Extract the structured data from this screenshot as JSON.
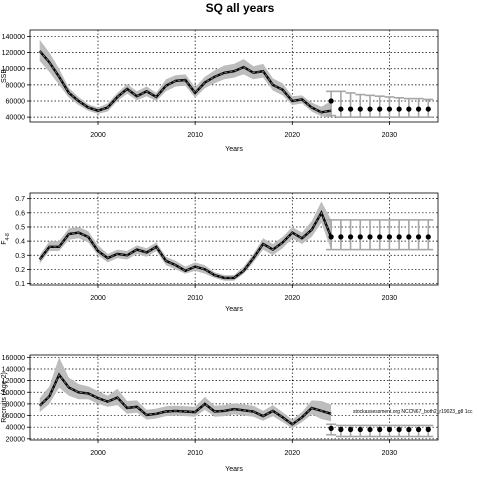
{
  "title": "SQ all years",
  "colors": {
    "band": "#bdbdbd",
    "line": "#000000",
    "grid": "#000000",
    "forecast_bar": "#a6a6a6"
  },
  "chart_data": [
    {
      "type": "line",
      "ylabel": "SSB",
      "xlabel": "Years",
      "xlim": [
        1993,
        2035
      ],
      "ylim": [
        34000,
        148000
      ],
      "xticks": [
        2000,
        2010,
        2020,
        2030
      ],
      "yticks": [
        40000,
        60000,
        80000,
        100000,
        120000,
        140000
      ],
      "grid": true,
      "historical": {
        "x": [
          1994,
          1995,
          1996,
          1997,
          1998,
          1999,
          2000,
          2001,
          2002,
          2003,
          2004,
          2005,
          2006,
          2007,
          2008,
          2009,
          2010,
          2011,
          2012,
          2013,
          2014,
          2015,
          2016,
          2017,
          2018,
          2019,
          2020,
          2021,
          2022,
          2023,
          2024
        ],
        "y": [
          122000,
          108000,
          90000,
          70000,
          60000,
          52000,
          48000,
          52000,
          65000,
          75000,
          66000,
          72000,
          65000,
          79000,
          85000,
          86000,
          70000,
          83000,
          90000,
          95000,
          97000,
          102000,
          95000,
          97000,
          80000,
          74000,
          60000,
          62000,
          52000,
          46000,
          48000
        ],
        "upper": [
          136000,
          120000,
          100000,
          76000,
          65000,
          56000,
          52000,
          57000,
          70000,
          81000,
          72000,
          78000,
          70000,
          87000,
          92000,
          93000,
          77000,
          90000,
          98000,
          104000,
          106000,
          112000,
          103000,
          106000,
          88000,
          82000,
          66000,
          67000,
          58000,
          53000,
          60000
        ],
        "lower": [
          110000,
          96000,
          80000,
          64000,
          55000,
          48000,
          44000,
          47000,
          60000,
          69000,
          61000,
          66000,
          60000,
          72000,
          78000,
          79000,
          64000,
          76000,
          82000,
          87000,
          89000,
          93000,
          87000,
          89000,
          73000,
          67000,
          55000,
          57000,
          47000,
          41000,
          40000
        ]
      },
      "forecast": {
        "x": [
          2024,
          2025,
          2026,
          2027,
          2028,
          2029,
          2030,
          2031,
          2032,
          2033,
          2034
        ],
        "y": [
          60000,
          50000,
          50000,
          50000,
          50000,
          50000,
          50000,
          50000,
          50000,
          50000,
          50000
        ],
        "upper": [
          72000,
          72000,
          70000,
          68000,
          67000,
          66000,
          65000,
          64000,
          63000,
          63000,
          62000
        ],
        "lower": [
          42000,
          40000,
          40000,
          40000,
          40000,
          40000,
          40000,
          40000,
          40000,
          40000,
          40000
        ]
      }
    },
    {
      "type": "line",
      "ylabel": "F",
      "ylabel_sub": "4-8",
      "xlabel": "Years",
      "xlim": [
        1993,
        2035
      ],
      "ylim": [
        0.09,
        0.74
      ],
      "xticks": [
        2000,
        2010,
        2020,
        2030
      ],
      "yticks": [
        0.1,
        0.2,
        0.3,
        0.4,
        0.5,
        0.6,
        0.7
      ],
      "ytick_labels": [
        "0.1",
        "0.2",
        "0.3",
        "0.4",
        "0.5",
        "0.6",
        "0.7"
      ],
      "grid": true,
      "historical": {
        "x": [
          1994,
          1995,
          1996,
          1997,
          1998,
          1999,
          2000,
          2001,
          2002,
          2003,
          2004,
          2005,
          2006,
          2007,
          2008,
          2009,
          2010,
          2011,
          2012,
          2013,
          2014,
          2015,
          2016,
          2017,
          2018,
          2019,
          2020,
          2021,
          2022,
          2023,
          2024
        ],
        "y": [
          0.27,
          0.36,
          0.36,
          0.45,
          0.46,
          0.43,
          0.33,
          0.28,
          0.31,
          0.3,
          0.34,
          0.32,
          0.36,
          0.26,
          0.23,
          0.19,
          0.22,
          0.2,
          0.16,
          0.14,
          0.14,
          0.19,
          0.28,
          0.38,
          0.34,
          0.39,
          0.46,
          0.42,
          0.48,
          0.6,
          0.43
        ],
        "upper": [
          0.3,
          0.4,
          0.4,
          0.49,
          0.5,
          0.47,
          0.37,
          0.31,
          0.34,
          0.33,
          0.37,
          0.35,
          0.39,
          0.29,
          0.26,
          0.22,
          0.25,
          0.23,
          0.18,
          0.16,
          0.16,
          0.22,
          0.31,
          0.42,
          0.38,
          0.43,
          0.5,
          0.46,
          0.54,
          0.68,
          0.55
        ],
        "lower": [
          0.24,
          0.33,
          0.33,
          0.41,
          0.42,
          0.39,
          0.3,
          0.25,
          0.28,
          0.27,
          0.31,
          0.29,
          0.33,
          0.23,
          0.2,
          0.17,
          0.19,
          0.17,
          0.14,
          0.12,
          0.12,
          0.17,
          0.25,
          0.34,
          0.3,
          0.35,
          0.42,
          0.38,
          0.43,
          0.53,
          0.34
        ]
      },
      "forecast": {
        "x": [
          2024,
          2025,
          2026,
          2027,
          2028,
          2029,
          2030,
          2031,
          2032,
          2033,
          2034
        ],
        "y": [
          0.43,
          0.43,
          0.43,
          0.43,
          0.43,
          0.43,
          0.43,
          0.43,
          0.43,
          0.43,
          0.43
        ],
        "upper": [
          0.55,
          0.55,
          0.55,
          0.55,
          0.55,
          0.55,
          0.55,
          0.55,
          0.55,
          0.55,
          0.55
        ],
        "lower": [
          0.34,
          0.34,
          0.34,
          0.34,
          0.34,
          0.34,
          0.34,
          0.34,
          0.34,
          0.34,
          0.34
        ]
      }
    },
    {
      "type": "line",
      "ylabel": "Recruits (Age 2)",
      "xlabel": "Years",
      "xlim": [
        1993,
        2035
      ],
      "ylim": [
        18000,
        164000
      ],
      "xticks": [
        2000,
        2010,
        2020,
        2030
      ],
      "yticks": [
        20000,
        40000,
        60000,
        80000,
        100000,
        120000,
        140000,
        160000
      ],
      "grid": true,
      "annotation": "stockassessment.org NCCN67_both2_r19023_g8 1cc",
      "historical": {
        "x": [
          1994,
          1995,
          1996,
          1997,
          1998,
          1999,
          2000,
          2001,
          2002,
          2003,
          2004,
          2005,
          2006,
          2007,
          2008,
          2009,
          2010,
          2011,
          2012,
          2013,
          2014,
          2015,
          2016,
          2017,
          2018,
          2019,
          2020,
          2021,
          2022,
          2023,
          2024
        ],
        "y": [
          77000,
          93000,
          130000,
          108000,
          100000,
          98000,
          90000,
          84000,
          91000,
          73000,
          75000,
          61000,
          63000,
          67000,
          68000,
          67000,
          66000,
          80000,
          67000,
          68000,
          71000,
          69000,
          67000,
          59000,
          68000,
          57000,
          45000,
          57000,
          73000,
          68000,
          63000
        ],
        "upper": [
          90000,
          110000,
          160000,
          125000,
          114000,
          110000,
          102000,
          94000,
          106000,
          85000,
          86000,
          70000,
          72000,
          76000,
          77000,
          76000,
          75000,
          92000,
          77000,
          78000,
          81000,
          79000,
          77000,
          68000,
          78000,
          66000,
          53000,
          66000,
          86000,
          85000,
          79000
        ],
        "lower": [
          66000,
          80000,
          108000,
          94000,
          88000,
          88000,
          80000,
          75000,
          78000,
          63000,
          65000,
          53000,
          55000,
          59000,
          60000,
          59000,
          58000,
          70000,
          58000,
          59000,
          62000,
          60000,
          58000,
          51000,
          59000,
          49000,
          38000,
          49000,
          62000,
          54000,
          50000
        ]
      },
      "forecast": {
        "x": [
          2024,
          2025,
          2026,
          2027,
          2028,
          2029,
          2030,
          2031,
          2032,
          2033,
          2034
        ],
        "y": [
          38000,
          36000,
          36000,
          36000,
          36000,
          36000,
          36000,
          36000,
          36000,
          36000,
          36000
        ],
        "upper": [
          45000,
          43000,
          43000,
          43000,
          43000,
          43000,
          43000,
          43000,
          43000,
          43000,
          43000
        ],
        "lower": [
          27000,
          24000,
          24000,
          24000,
          24000,
          24000,
          24000,
          24000,
          24000,
          24000,
          24000
        ]
      }
    }
  ]
}
